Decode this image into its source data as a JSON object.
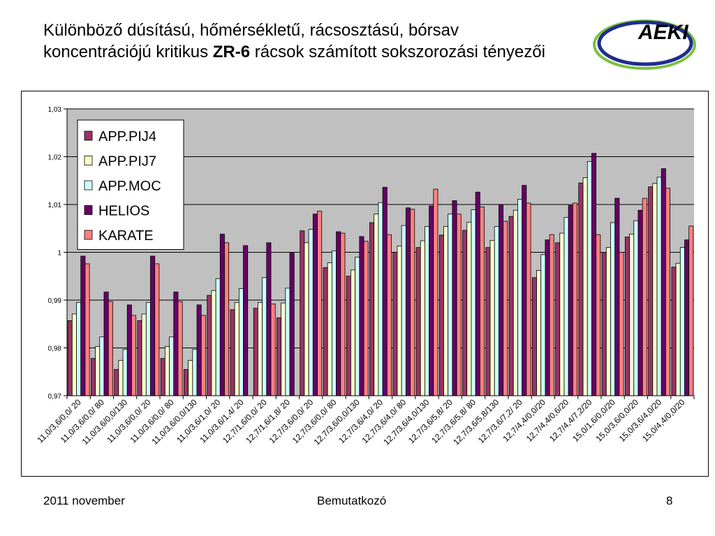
{
  "slide": {
    "title_line1": "Különböző dúsítású, hőmérsékletű, rácsosztású, bórsav",
    "title_line2_pre": "koncentrációjú kritikus ",
    "title_line2_bold": "ZR-6",
    "title_line2_post": " rácsok számított sokszorozási tényezői",
    "logo_text": "AEKI",
    "footer_date": "2011 november",
    "footer_center": "Bemutatkozó",
    "page_number": "8"
  },
  "colors": {
    "plot_bg": "#c0c0c0",
    "APP.PIJ4": "#993366",
    "APP.PIJ7": "#ffffcc",
    "APP.MOC": "#ccffff",
    "HELIOS": "#660066",
    "KARATE": "#ff8080",
    "logo_blue": "#1f2d8c",
    "logo_green": "#79c142"
  },
  "chart_data": {
    "type": "bar",
    "title": "",
    "xlabel": "",
    "ylabel": "",
    "ylim": [
      0.97,
      1.03
    ],
    "y_ticks": [
      "0,97",
      "0,98",
      "0,99",
      "1",
      "1,01",
      "1,02",
      "1,03"
    ],
    "y_tick_values": [
      0.97,
      0.98,
      0.99,
      1.0,
      1.01,
      1.02,
      1.03
    ],
    "grid": true,
    "legend_position": "top-left",
    "categories": [
      "11,0/3,6/0,0/  20",
      "11,0/3,6/0,0/  80",
      "11,0/3,6/0,0/130",
      "11,0/3,6/0,0/  20",
      "11,0/3,6/0,0/  80",
      "11,0/3,6/0,0/130",
      "11,0/3,6/1,0/  20",
      "11,0/3,6/1,4/  20",
      "12,7/1,6/0,0/  20",
      "12,7/1,6/1,8/  20",
      "12,7/3,6/0,0/  20",
      "12,7/3,6/0,0/  80",
      "12,7/3,6/0,0/130",
      "12,7/3,6/4,0/  20",
      "12,7/3,6/4,0/  80",
      "12,7/3,6/4,0/130",
      "12,7/3,6/5,8/  20",
      "12,7/3,6/5,8/  80",
      "12,7/3,6/5,8/130",
      "12,7/3,6/7,2/  20",
      "12,7/4,4/0,0/20",
      "12,7/4,4/0,6/20",
      "12,7/4,4/7,2/20",
      "15,0/1,6/0,0/20",
      "15,0/3,6/0,0/20",
      "15,0/3,6/4,0/20",
      "15,0/4,4/0,0/20"
    ],
    "series": [
      {
        "name": "APP.PIJ4",
        "values": [
          0.9857,
          0.9778,
          0.9755,
          0.9857,
          0.9778,
          0.9755,
          0.991,
          0.988,
          0.9883,
          0.9863,
          1.0045,
          0.9968,
          0.995,
          1.0062,
          1.0,
          1.001,
          1.0036,
          1.0046,
          1.001,
          1.0075,
          0.9947,
          1.002,
          1.0145,
          1.0,
          1.0032,
          1.0137,
          0.9969
        ]
      },
      {
        "name": "APP.PIJ7",
        "values": [
          0.9871,
          0.9803,
          0.9774,
          0.9871,
          0.9803,
          0.9774,
          0.992,
          0.9895,
          0.9895,
          0.9894,
          1.002,
          0.9978,
          0.9963,
          1.008,
          1.0013,
          1.0024,
          1.0054,
          1.0063,
          1.0025,
          1.0088,
          0.9962,
          1.004,
          1.0156,
          1.001,
          1.0038,
          1.0144,
          0.9977
        ]
      },
      {
        "name": "APP.MOC",
        "values": [
          0.9895,
          0.9823,
          0.9797,
          0.9895,
          0.9823,
          0.9797,
          0.9945,
          0.9924,
          0.9947,
          0.9925,
          1.0048,
          1.0003,
          0.999,
          1.0104,
          1.0056,
          1.0054,
          1.008,
          1.0089,
          1.0054,
          1.0111,
          0.9995,
          1.0073,
          1.019,
          1.0062,
          1.0066,
          1.0157,
          1.001
        ]
      },
      {
        "name": "HELIOS",
        "values": [
          0.9992,
          0.9917,
          0.989,
          0.9992,
          0.9917,
          0.989,
          1.0038,
          1.0014,
          1.002,
          1.0,
          1.008,
          1.0043,
          1.0033,
          1.0136,
          1.0093,
          1.0097,
          1.0108,
          1.0126,
          1.01,
          1.014,
          1.0026,
          1.0098,
          1.0207,
          1.0113,
          1.0088,
          1.0175,
          1.0026
        ]
      },
      {
        "name": "KARATE",
        "values": [
          0.9976,
          0.9897,
          0.9868,
          0.9976,
          0.9897,
          0.9868,
          1.002,
          null,
          0.9892,
          null,
          1.0086,
          1.004,
          1.0023,
          1.0037,
          1.009,
          1.0132,
          1.008,
          1.0095,
          1.0065,
          1.0103,
          1.0037,
          1.0103,
          1.0037,
          1.0,
          1.0113,
          1.0134,
          1.0055
        ]
      }
    ]
  }
}
